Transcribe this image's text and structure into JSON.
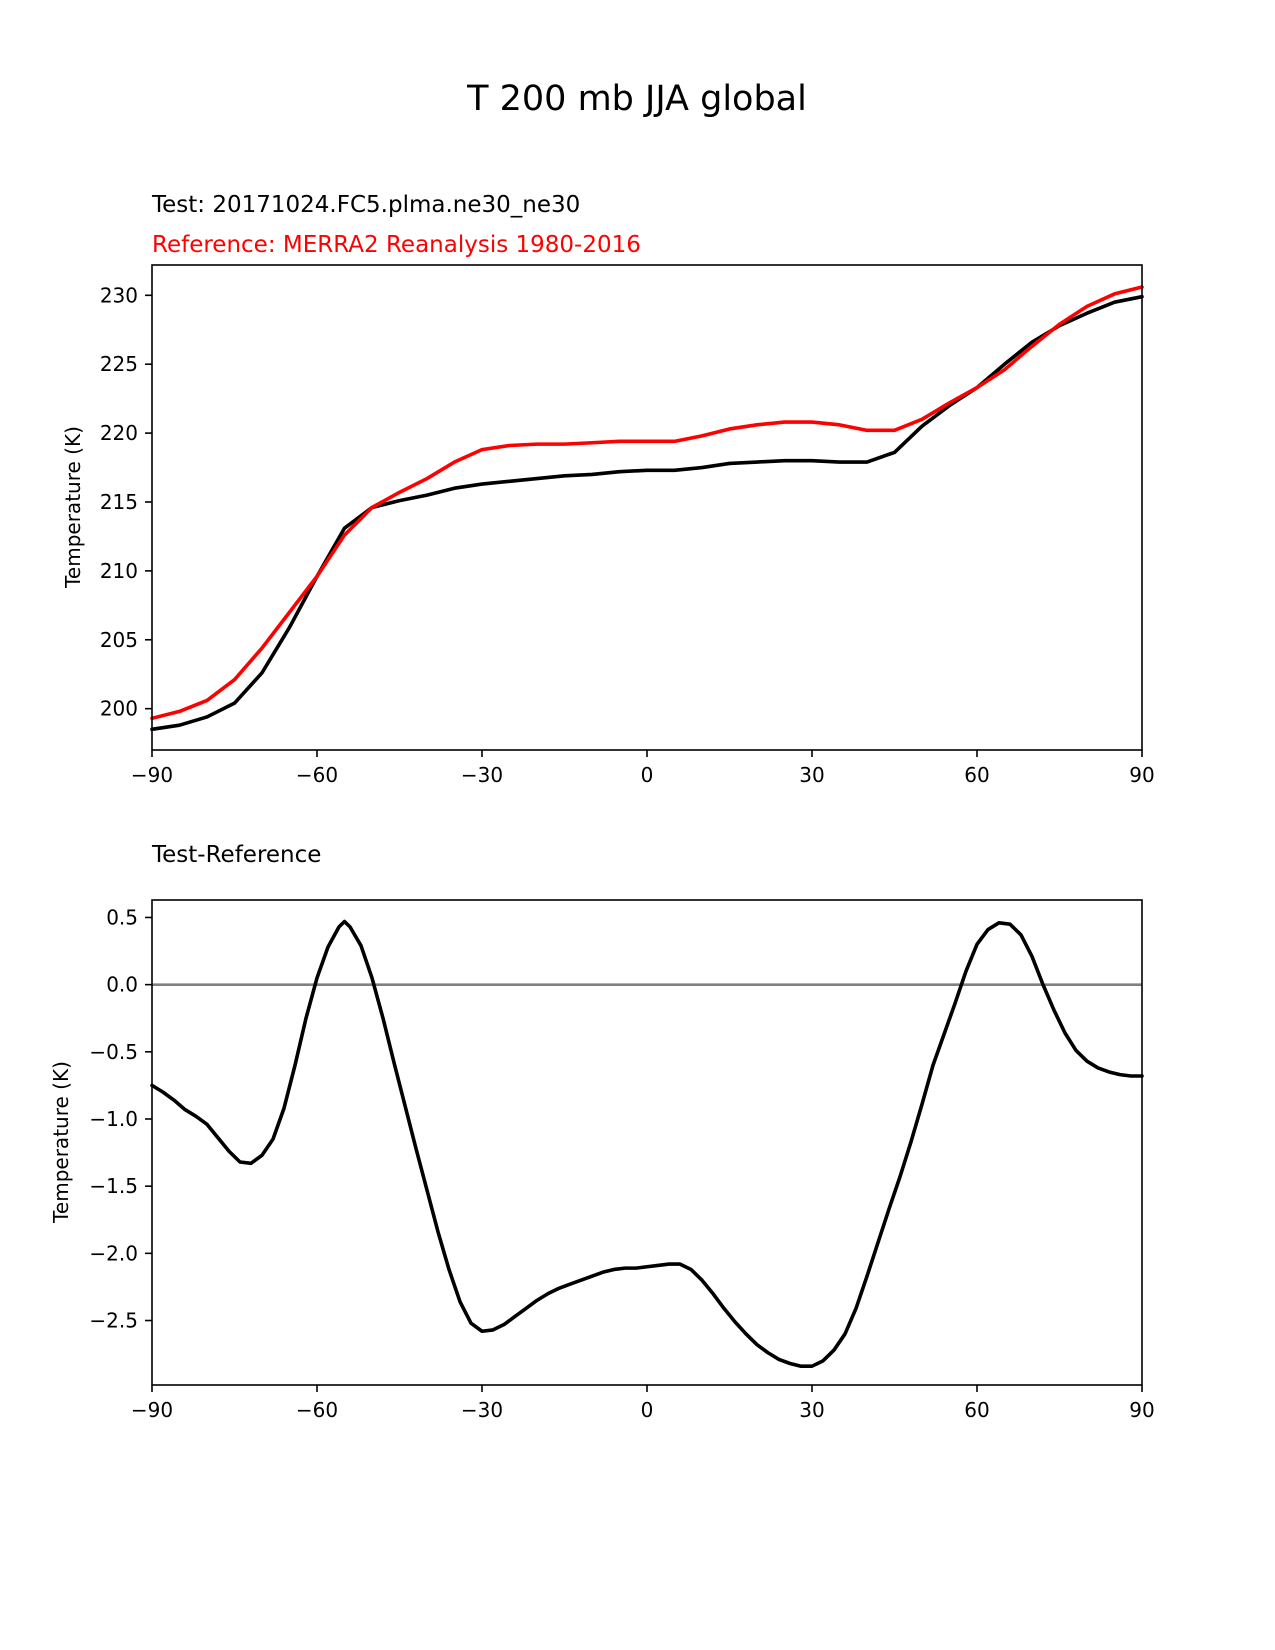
{
  "suptitle": "T 200 mb JJA global",
  "colors": {
    "test": "#000000",
    "reference": "#ff0000",
    "zero_line": "#808080",
    "axes": "#000000"
  },
  "chart_data": [
    {
      "type": "line",
      "title_test": "Test: 20171024.FC5.plma.ne30_ne30",
      "title_reference": "Reference: MERRA2 Reanalysis 1980-2016",
      "xlabel": "",
      "ylabel": "Temperature (K)",
      "xlim": [
        -90,
        90
      ],
      "ylim": [
        197,
        232.2
      ],
      "xticks": [
        -90,
        -60,
        -30,
        0,
        30,
        60,
        90
      ],
      "xtick_labels": [
        "−90",
        "−60",
        "−30",
        "0",
        "30",
        "60",
        "90"
      ],
      "yticks": [
        200,
        205,
        210,
        215,
        220,
        225,
        230
      ],
      "ytick_labels": [
        "200",
        "205",
        "210",
        "215",
        "220",
        "225",
        "230"
      ],
      "x": [
        -90,
        -85,
        -80,
        -75,
        -70,
        -65,
        -60,
        -55,
        -50,
        -45,
        -40,
        -35,
        -30,
        -25,
        -20,
        -15,
        -10,
        -5,
        0,
        5,
        10,
        15,
        20,
        25,
        30,
        35,
        40,
        45,
        50,
        55,
        60,
        65,
        70,
        75,
        80,
        85,
        90
      ],
      "series": [
        {
          "name": "Test",
          "color": "#000000",
          "values": [
            198.5,
            198.8,
            199.4,
            200.4,
            202.6,
            205.9,
            209.6,
            213.1,
            214.6,
            215.1,
            215.5,
            216.0,
            216.3,
            216.5,
            216.7,
            216.9,
            217.0,
            217.2,
            217.3,
            217.3,
            217.5,
            217.8,
            217.9,
            218.0,
            218.0,
            217.9,
            217.9,
            218.6,
            220.5,
            222.0,
            223.3,
            225.0,
            226.6,
            227.8,
            228.7,
            229.5,
            229.9
          ]
        },
        {
          "name": "Reference",
          "color": "#ff0000",
          "values": [
            199.3,
            199.8,
            200.6,
            202.1,
            204.4,
            207.0,
            209.6,
            212.6,
            214.6,
            215.7,
            216.7,
            217.9,
            218.8,
            219.1,
            219.2,
            219.2,
            219.3,
            219.4,
            219.4,
            219.4,
            219.8,
            220.3,
            220.6,
            220.8,
            220.8,
            220.6,
            220.2,
            220.2,
            221.0,
            222.2,
            223.3,
            224.6,
            226.3,
            227.9,
            229.2,
            230.1,
            230.6
          ]
        }
      ]
    },
    {
      "type": "line",
      "title": "Test-Reference",
      "xlabel": "",
      "ylabel": "Temperature (K)",
      "xlim": [
        -90,
        90
      ],
      "ylim": [
        -2.98,
        0.63
      ],
      "xticks": [
        -90,
        -60,
        -30,
        0,
        30,
        60,
        90
      ],
      "xtick_labels": [
        "−90",
        "−60",
        "−30",
        "0",
        "30",
        "60",
        "90"
      ],
      "yticks": [
        0.5,
        0.0,
        -0.5,
        -1.0,
        -1.5,
        -2.0,
        -2.5
      ],
      "ytick_labels": [
        "0.5",
        "0.0",
        "−0.5",
        "−1.0",
        "−1.5",
        "−2.0",
        "−2.5"
      ],
      "zero_line": 0.0,
      "x": [
        -90,
        -88,
        -86,
        -84,
        -82,
        -80,
        -78,
        -76,
        -74,
        -72,
        -70,
        -68,
        -66,
        -64,
        -62,
        -60,
        -58,
        -56,
        -55,
        -54,
        -52,
        -50,
        -48,
        -46,
        -44,
        -42,
        -40,
        -38,
        -36,
        -34,
        -32,
        -30,
        -28,
        -26,
        -24,
        -22,
        -20,
        -18,
        -16,
        -14,
        -12,
        -10,
        -8,
        -6,
        -4,
        -2,
        0,
        2,
        4,
        6,
        8,
        10,
        12,
        14,
        16,
        18,
        20,
        22,
        24,
        26,
        28,
        30,
        32,
        34,
        36,
        38,
        40,
        42,
        44,
        46,
        48,
        50,
        52,
        54,
        56,
        58,
        60,
        62,
        64,
        66,
        68,
        70,
        72,
        74,
        76,
        78,
        80,
        82,
        84,
        86,
        88,
        90
      ],
      "series": [
        {
          "name": "Test-Reference",
          "color": "#000000",
          "values": [
            -0.75,
            -0.8,
            -0.86,
            -0.93,
            -0.98,
            -1.04,
            -1.14,
            -1.24,
            -1.32,
            -1.33,
            -1.27,
            -1.15,
            -0.92,
            -0.6,
            -0.25,
            0.05,
            0.28,
            0.43,
            0.47,
            0.43,
            0.29,
            0.05,
            -0.25,
            -0.58,
            -0.9,
            -1.22,
            -1.53,
            -1.84,
            -2.12,
            -2.36,
            -2.52,
            -2.58,
            -2.57,
            -2.53,
            -2.47,
            -2.41,
            -2.35,
            -2.3,
            -2.26,
            -2.23,
            -2.2,
            -2.17,
            -2.14,
            -2.12,
            -2.11,
            -2.11,
            -2.1,
            -2.09,
            -2.08,
            -2.08,
            -2.12,
            -2.2,
            -2.3,
            -2.41,
            -2.51,
            -2.6,
            -2.68,
            -2.74,
            -2.79,
            -2.82,
            -2.84,
            -2.84,
            -2.8,
            -2.72,
            -2.6,
            -2.41,
            -2.17,
            -1.92,
            -1.67,
            -1.43,
            -1.17,
            -0.89,
            -0.6,
            -0.37,
            -0.14,
            0.1,
            0.3,
            0.41,
            0.46,
            0.45,
            0.37,
            0.21,
            0.0,
            -0.19,
            -0.36,
            -0.49,
            -0.57,
            -0.62,
            -0.65,
            -0.67,
            -0.68,
            -0.68
          ]
        }
      ]
    }
  ]
}
